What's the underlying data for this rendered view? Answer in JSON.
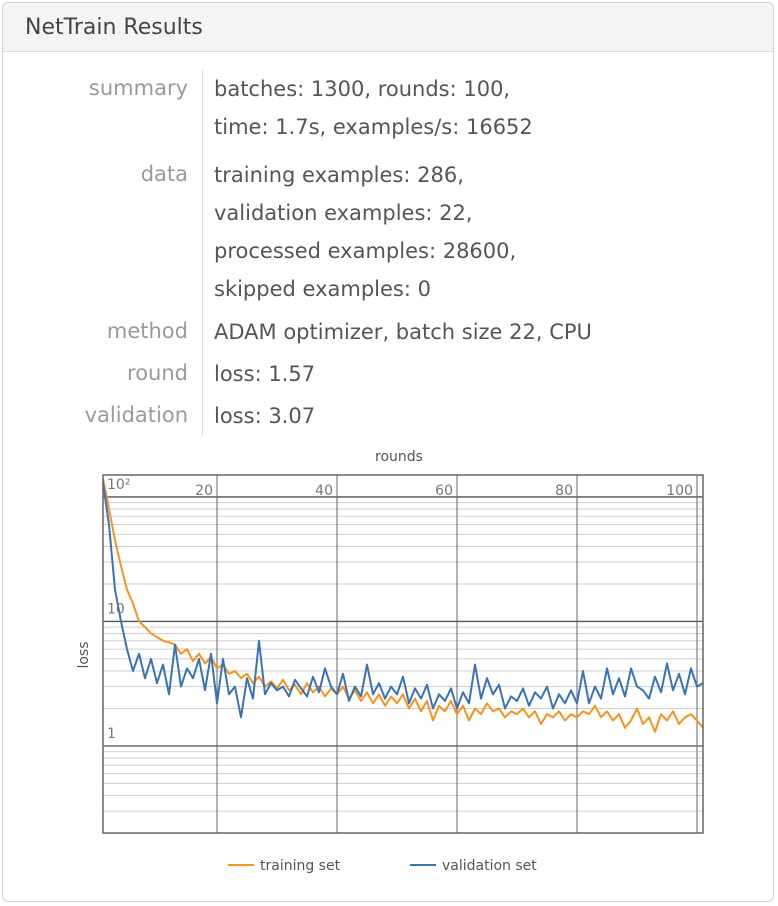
{
  "header": {
    "title": "NetTrain Results"
  },
  "info": [
    {
      "label": "summary",
      "lines": [
        "batches: 1300, rounds: 100,",
        "time: 1.7s, examples/s: 16652"
      ]
    },
    {
      "label": "data",
      "lines": [
        "training examples: 286,",
        "validation examples: 22,",
        "processed examples: 28600,",
        "skipped examples: 0"
      ]
    },
    {
      "label": "method",
      "lines": [
        "ADAM optimizer, batch size 22, CPU"
      ]
    },
    {
      "label": "round",
      "lines": [
        "loss: 1.57"
      ]
    },
    {
      "label": "validation",
      "lines": [
        "loss: 3.07"
      ]
    }
  ],
  "chart_data": {
    "type": "line",
    "xlabel": "rounds",
    "ylabel": "loss",
    "y_scale": "log",
    "xlim": [
      1,
      101
    ],
    "ylim": [
      0.2,
      150
    ],
    "x_ticks": [
      20,
      40,
      60,
      80,
      100
    ],
    "y_ticks": [
      {
        "value": 1,
        "label": "1"
      },
      {
        "value": 10,
        "label": "10"
      },
      {
        "value": 100,
        "label": "10²"
      }
    ],
    "grid": true,
    "legend_position": "bottom",
    "series": [
      {
        "name": "training set",
        "color": "#f7931e",
        "x": [
          1,
          2,
          3,
          4,
          5,
          6,
          7,
          8,
          9,
          10,
          11,
          12,
          13,
          14,
          15,
          16,
          17,
          18,
          19,
          20,
          21,
          22,
          23,
          24,
          25,
          26,
          27,
          28,
          29,
          30,
          31,
          32,
          33,
          34,
          35,
          36,
          37,
          38,
          39,
          40,
          41,
          42,
          43,
          44,
          45,
          46,
          47,
          48,
          49,
          50,
          51,
          52,
          53,
          54,
          55,
          56,
          57,
          58,
          59,
          60,
          61,
          62,
          63,
          64,
          65,
          66,
          67,
          68,
          69,
          70,
          71,
          72,
          73,
          74,
          75,
          76,
          77,
          78,
          79,
          80,
          81,
          82,
          83,
          84,
          85,
          86,
          87,
          88,
          89,
          90,
          91,
          92,
          93,
          94,
          95,
          96,
          97,
          98,
          99,
          100,
          101
        ],
        "y": [
          140,
          80,
          45,
          28,
          18,
          14,
          10,
          9,
          8,
          7.5,
          7,
          6.8,
          6.5,
          5.5,
          6,
          4.8,
          5.5,
          4.6,
          5.2,
          4.2,
          4.5,
          3.8,
          4.0,
          3.5,
          3.8,
          3.2,
          3.6,
          3.0,
          3.3,
          2.9,
          3.4,
          2.8,
          3.1,
          2.6,
          3.2,
          2.7,
          3.0,
          2.5,
          2.9,
          2.6,
          3.0,
          2.4,
          2.8,
          2.3,
          2.7,
          2.2,
          2.6,
          2.1,
          2.5,
          2.2,
          2.6,
          2.0,
          2.4,
          1.9,
          2.3,
          1.6,
          2.1,
          1.9,
          2.3,
          1.8,
          2.1,
          1.6,
          2.0,
          1.8,
          2.2,
          1.9,
          2.0,
          1.7,
          1.9,
          1.8,
          2.0,
          1.7,
          1.9,
          1.5,
          1.8,
          1.7,
          1.9,
          1.6,
          1.8,
          1.7,
          1.9,
          1.8,
          2.1,
          1.7,
          1.9,
          1.6,
          1.8,
          1.4,
          1.6,
          2.0,
          1.5,
          1.7,
          1.3,
          1.8,
          1.6,
          1.9,
          1.5,
          1.7,
          1.8,
          1.6,
          1.4
        ]
      },
      {
        "name": "validation set",
        "color": "#3a72b8",
        "x": [
          1,
          2,
          3,
          4,
          5,
          6,
          7,
          8,
          9,
          10,
          11,
          12,
          13,
          14,
          15,
          16,
          17,
          18,
          19,
          20,
          21,
          22,
          23,
          24,
          25,
          26,
          27,
          28,
          29,
          30,
          31,
          32,
          33,
          34,
          35,
          36,
          37,
          38,
          39,
          40,
          41,
          42,
          43,
          44,
          45,
          46,
          47,
          48,
          49,
          50,
          51,
          52,
          53,
          54,
          55,
          56,
          57,
          58,
          59,
          60,
          61,
          62,
          63,
          64,
          65,
          66,
          67,
          68,
          69,
          70,
          71,
          72,
          73,
          74,
          75,
          76,
          77,
          78,
          79,
          80,
          81,
          82,
          83,
          84,
          85,
          86,
          87,
          88,
          89,
          90,
          91,
          92,
          93,
          94,
          95,
          96,
          97,
          98,
          99,
          100,
          101
        ],
        "y": [
          130,
          60,
          18,
          10,
          6,
          4.0,
          5.5,
          3.5,
          5.0,
          3.2,
          4.5,
          2.6,
          6.5,
          3.0,
          4.2,
          3.5,
          5.0,
          2.8,
          5.5,
          2.2,
          5.0,
          2.6,
          3.0,
          1.7,
          3.5,
          2.4,
          7.0,
          2.6,
          3.2,
          2.8,
          3.0,
          2.5,
          3.4,
          2.9,
          2.5,
          3.6,
          2.7,
          4.2,
          3.0,
          2.6,
          3.8,
          2.3,
          3.0,
          2.5,
          4.5,
          2.6,
          3.2,
          2.4,
          3.0,
          2.6,
          3.6,
          2.2,
          2.9,
          2.4,
          3.1,
          2.0,
          2.6,
          2.3,
          2.9,
          2.0,
          2.7,
          2.2,
          4.5,
          2.4,
          3.5,
          2.6,
          3.1,
          2.0,
          2.5,
          2.3,
          2.9,
          2.1,
          2.7,
          2.4,
          3.0,
          2.0,
          2.6,
          2.2,
          2.8,
          2.2,
          4.0,
          2.2,
          3.0,
          2.4,
          4.2,
          2.6,
          3.5,
          2.5,
          4.2,
          3.0,
          2.8,
          2.4,
          3.6,
          2.7,
          4.6,
          2.8,
          3.8,
          2.6,
          4.2,
          3.0,
          3.2
        ]
      }
    ]
  }
}
